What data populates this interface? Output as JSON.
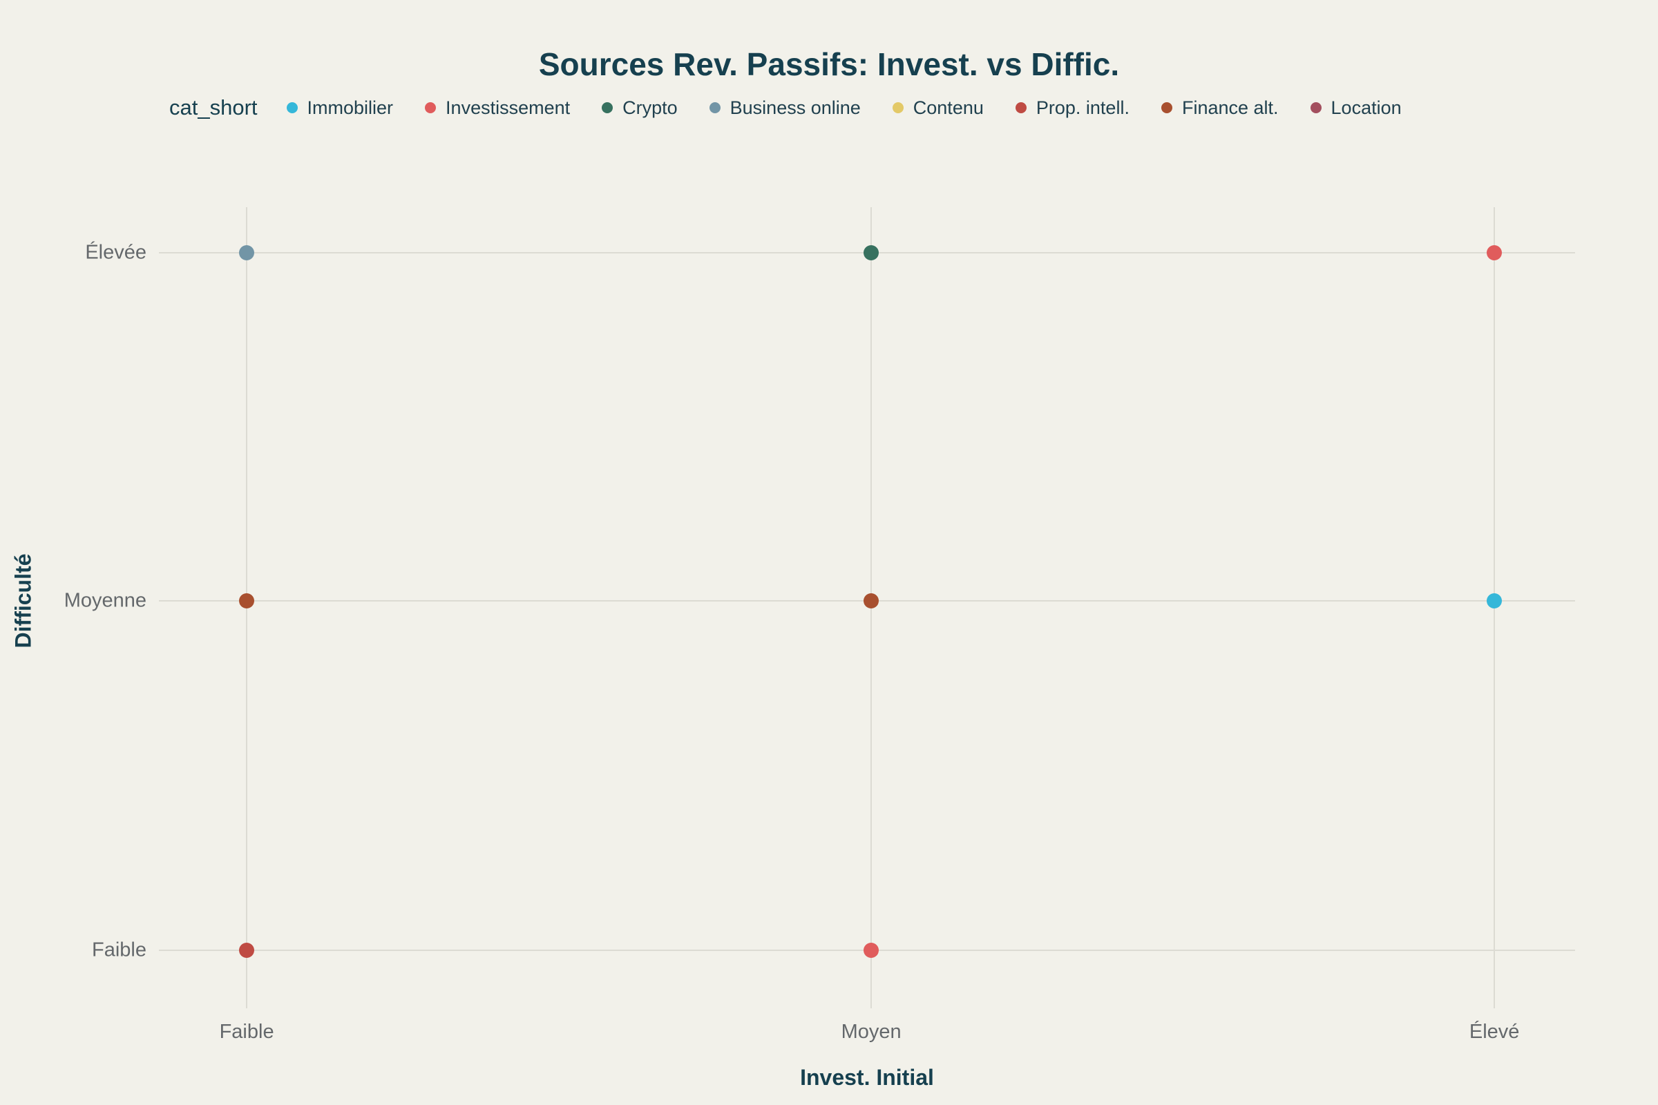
{
  "colors": {
    "background": "#f2f1ea",
    "title": "#16404f",
    "gridline": "#dcdbd3",
    "tick_label": "#64686b"
  },
  "chart_data": {
    "type": "scatter",
    "title": "Sources Rev. Passifs: Invest. vs Diffic.",
    "xlabel": "Invest. Initial",
    "ylabel": "Difficulté",
    "legend_title": "cat_short",
    "legend_position": "top",
    "grid": true,
    "x_categories": [
      "Faible",
      "Moyen",
      "Élevé"
    ],
    "y_categories": [
      "Élevée",
      "Moyenne",
      "Faible"
    ],
    "series": [
      {
        "name": "Immobilier",
        "color": "#35b7d9",
        "points": [
          {
            "x": "Élevé",
            "y": "Moyenne"
          }
        ]
      },
      {
        "name": "Investissement",
        "color": "#e05c5c",
        "points": [
          {
            "x": "Élevé",
            "y": "Élevée"
          },
          {
            "x": "Moyen",
            "y": "Faible"
          }
        ]
      },
      {
        "name": "Crypto",
        "color": "#37715f",
        "points": [
          {
            "x": "Moyen",
            "y": "Élevée"
          }
        ]
      },
      {
        "name": "Business online",
        "color": "#7295a6",
        "points": [
          {
            "x": "Faible",
            "y": "Élevée"
          }
        ]
      },
      {
        "name": "Contenu",
        "color": "#e3c967",
        "points": []
      },
      {
        "name": "Prop. intell.",
        "color": "#bf4b43",
        "points": [
          {
            "x": "Faible",
            "y": "Faible"
          }
        ]
      },
      {
        "name": "Finance alt.",
        "color": "#a8502f",
        "points": [
          {
            "x": "Faible",
            "y": "Moyenne"
          },
          {
            "x": "Moyen",
            "y": "Moyenne"
          }
        ]
      },
      {
        "name": "Location",
        "color": "#a34f5e",
        "points": []
      }
    ]
  }
}
